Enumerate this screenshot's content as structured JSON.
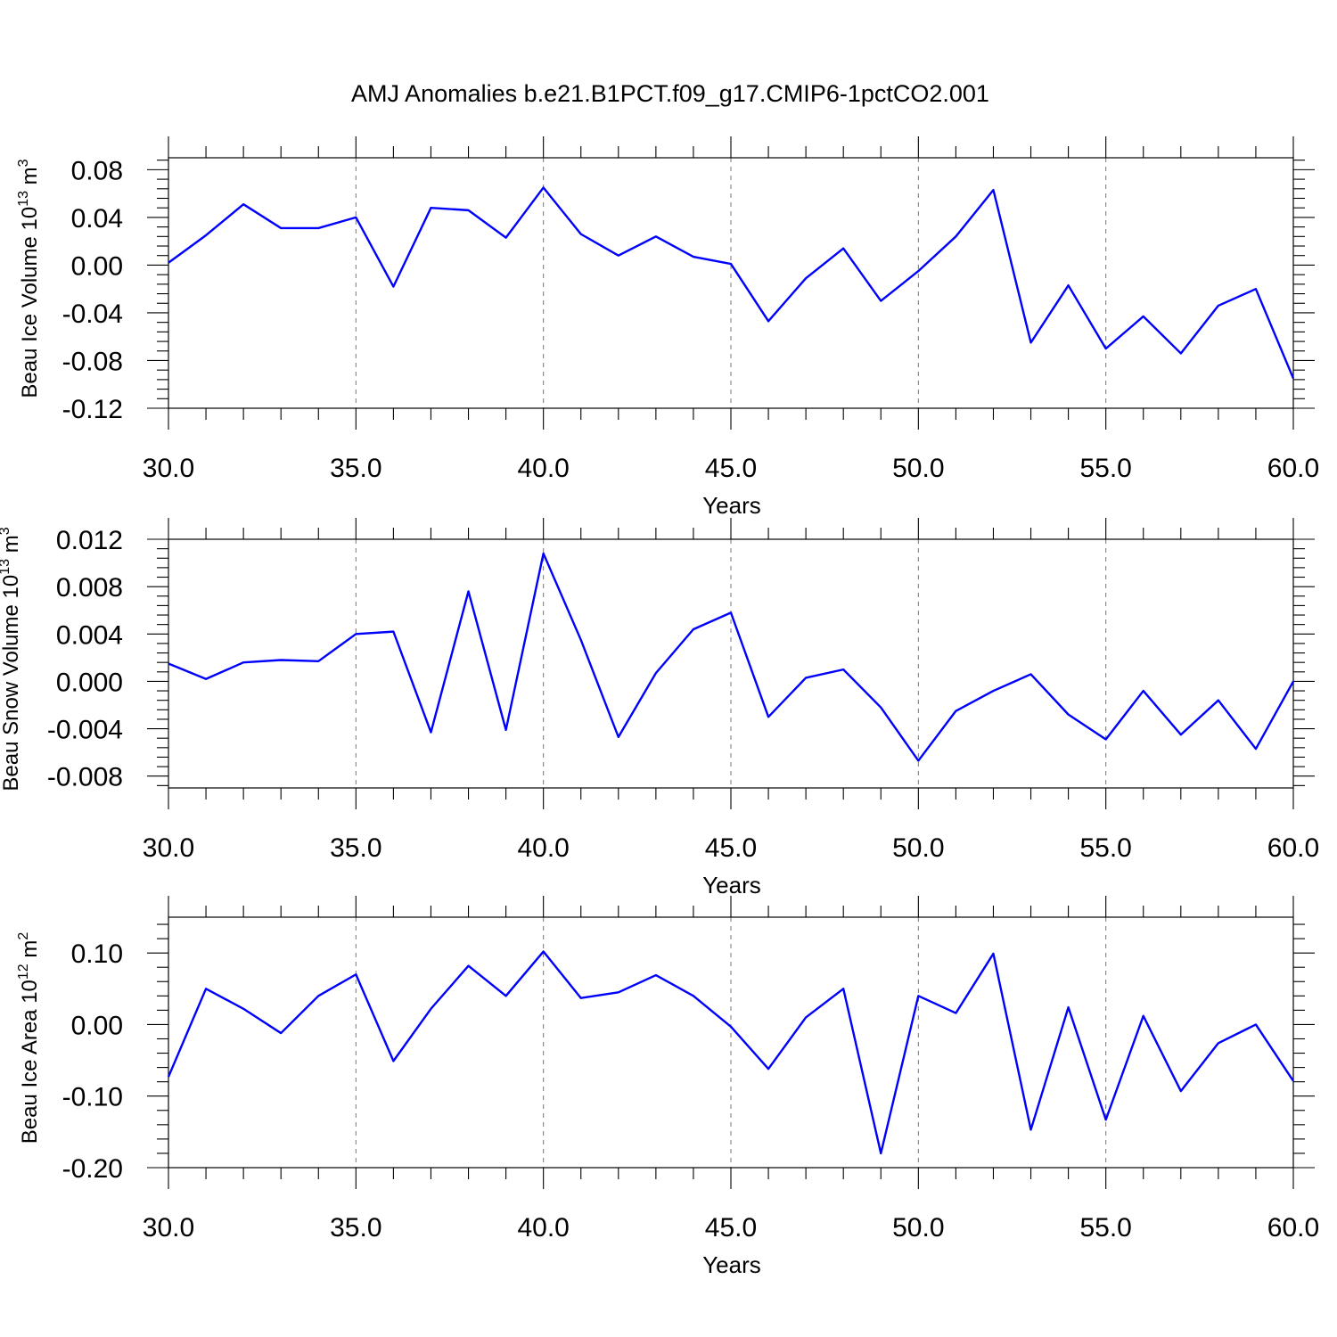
{
  "title": "AMJ Anomalies b.e21.B1PCT.f09_g17.CMIP6-1pctCO2.001",
  "colors": {
    "series": "#0000ff",
    "grid": "#777777",
    "axis": "#000000"
  },
  "chart_data": [
    {
      "type": "line",
      "ylabel": {
        "text": "Beau Ice Volume 10",
        "sup": "13",
        "unit": " m",
        "unit_sup": "3"
      },
      "xlabel": "Years",
      "xlim": [
        30,
        60
      ],
      "ylim": [
        -0.12,
        0.09
      ],
      "xticks": [
        30,
        35,
        40,
        45,
        50,
        55,
        60
      ],
      "xtick_labels": [
        "30.0",
        "35.0",
        "40.0",
        "45.0",
        "50.0",
        "55.0",
        "60.0"
      ],
      "yticks": [
        -0.12,
        -0.08,
        -0.04,
        0.0,
        0.04,
        0.08
      ],
      "ytick_labels": [
        "-0.12",
        "-0.08",
        "-0.04",
        "0.00",
        "0.04",
        "0.08"
      ],
      "x": [
        30,
        31,
        32,
        33,
        34,
        35,
        36,
        37,
        38,
        39,
        40,
        41,
        42,
        43,
        44,
        45,
        46,
        47,
        48,
        49,
        50,
        51,
        52,
        53,
        54,
        55,
        56,
        57,
        58,
        59,
        60
      ],
      "series": [
        {
          "values": [
            0.002,
            0.025,
            0.051,
            0.031,
            0.031,
            0.04,
            -0.018,
            0.048,
            0.046,
            0.023,
            0.065,
            0.026,
            0.008,
            0.024,
            0.007,
            0.001,
            -0.047,
            -0.011,
            0.014,
            -0.03,
            -0.005,
            0.024,
            0.063,
            -0.065,
            -0.017,
            -0.07,
            -0.043,
            -0.074,
            -0.034,
            -0.02,
            -0.095
          ]
        }
      ],
      "grid": "dashed vertical at major x ticks"
    },
    {
      "type": "line",
      "ylabel": {
        "text": "Beau Snow Volume 10",
        "sup": "13",
        "unit": " m",
        "unit_sup": "3"
      },
      "xlabel": "Years",
      "xlim": [
        30,
        60
      ],
      "ylim": [
        -0.009,
        0.012
      ],
      "xticks": [
        30,
        35,
        40,
        45,
        50,
        55,
        60
      ],
      "xtick_labels": [
        "30.0",
        "35.0",
        "40.0",
        "45.0",
        "50.0",
        "55.0",
        "60.0"
      ],
      "yticks": [
        -0.008,
        -0.004,
        0.0,
        0.004,
        0.008,
        0.012
      ],
      "ytick_labels": [
        "-0.008",
        "-0.004",
        "0.000",
        "0.004",
        "0.008",
        "0.012"
      ],
      "x": [
        30,
        31,
        32,
        33,
        34,
        35,
        36,
        37,
        38,
        39,
        40,
        41,
        42,
        43,
        44,
        45,
        46,
        47,
        48,
        49,
        50,
        51,
        52,
        53,
        54,
        55,
        56,
        57,
        58,
        59,
        60
      ],
      "series": [
        {
          "values": [
            0.0015,
            0.0002,
            0.0016,
            0.0018,
            0.0017,
            0.004,
            0.0042,
            -0.0043,
            0.0076,
            -0.0041,
            0.0108,
            0.0035,
            -0.0047,
            0.0007,
            0.0044,
            0.0058,
            -0.003,
            0.0003,
            0.001,
            -0.0022,
            -0.0067,
            -0.0025,
            -0.0008,
            0.0006,
            -0.0028,
            -0.0049,
            -0.0008,
            -0.0045,
            -0.0016,
            -0.0057,
            0.0
          ]
        }
      ],
      "grid": "dashed vertical at major x ticks"
    },
    {
      "type": "line",
      "ylabel": {
        "text": "Beau Ice Area 10",
        "sup": "12",
        "unit": " m",
        "unit_sup": "2"
      },
      "xlabel": "Years",
      "xlim": [
        30,
        60
      ],
      "ylim": [
        -0.2,
        0.15
      ],
      "xticks": [
        30,
        35,
        40,
        45,
        50,
        55,
        60
      ],
      "xtick_labels": [
        "30.0",
        "35.0",
        "40.0",
        "45.0",
        "50.0",
        "55.0",
        "60.0"
      ],
      "yticks": [
        -0.2,
        -0.1,
        0.0,
        0.1
      ],
      "ytick_labels": [
        "-0.20",
        "-0.10",
        "0.00",
        "0.10"
      ],
      "x": [
        30,
        31,
        32,
        33,
        34,
        35,
        36,
        37,
        38,
        39,
        40,
        41,
        42,
        43,
        44,
        45,
        46,
        47,
        48,
        49,
        50,
        51,
        52,
        53,
        54,
        55,
        56,
        57,
        58,
        59,
        60
      ],
      "series": [
        {
          "values": [
            -0.073,
            0.05,
            0.022,
            -0.012,
            0.04,
            0.07,
            -0.051,
            0.022,
            0.082,
            0.04,
            0.102,
            0.037,
            0.045,
            0.069,
            0.04,
            -0.003,
            -0.062,
            0.01,
            0.05,
            -0.18,
            0.04,
            0.016,
            0.099,
            -0.147,
            0.024,
            -0.133,
            0.012,
            -0.093,
            -0.026,
            0.0,
            -0.079
          ]
        }
      ],
      "grid": "dashed vertical at major x ticks"
    }
  ]
}
